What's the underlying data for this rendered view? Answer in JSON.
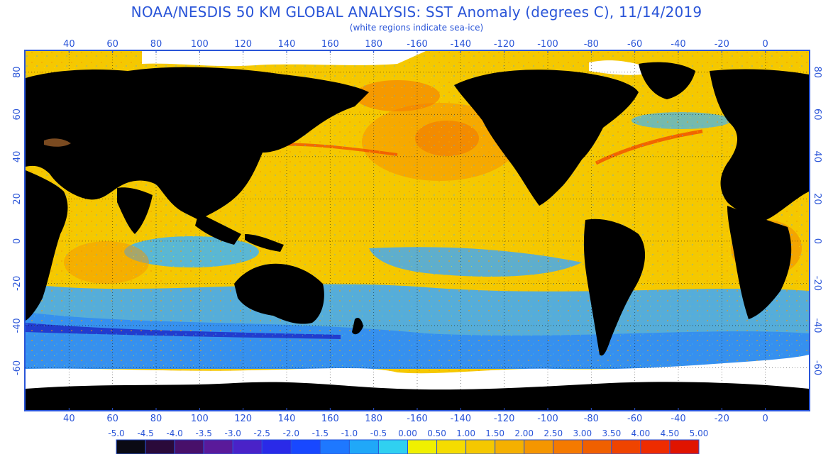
{
  "header": {
    "title": "NOAA/NESDIS 50 KM GLOBAL ANALYSIS: SST Anomaly (degrees C), 11/14/2019",
    "subtitle": "(white regions indicate sea-ice)"
  },
  "map": {
    "longitude_labels": [
      "40",
      "60",
      "80",
      "100",
      "120",
      "140",
      "160",
      "180",
      "-160",
      "-140",
      "-120",
      "-100",
      "-80",
      "-60",
      "-40",
      "-20",
      "0"
    ],
    "latitude_labels": [
      "80",
      "60",
      "40",
      "20",
      "0",
      "-20",
      "-40",
      "-60"
    ],
    "colors": {
      "ocean_base": "#f5c800",
      "land": "#000000",
      "sea_ice": "#ffffff",
      "frame": "#2a55d8",
      "label": "#2a55d8"
    }
  },
  "colorbar": {
    "labels": [
      "-5.0",
      "-4.5",
      "-4.0",
      "-3.5",
      "-3.0",
      "-2.5",
      "-2.0",
      "-1.5",
      "-1.0",
      "-0.5",
      "0.00",
      "0.50",
      "1.00",
      "1.50",
      "2.00",
      "2.50",
      "3.00",
      "3.50",
      "4.00",
      "4.50",
      "5.00"
    ],
    "colors": [
      "#0a0a14",
      "#2a0a3a",
      "#48106a",
      "#5a1a9a",
      "#4a22c8",
      "#2a2ae8",
      "#1848ff",
      "#1e78ff",
      "#20a8f8",
      "#30d0f0",
      "#f0f000",
      "#f5dc00",
      "#f5c800",
      "#f5b000",
      "#f59600",
      "#f57a00",
      "#f06000",
      "#ef4400",
      "#ee2c00",
      "#e01400"
    ]
  }
}
